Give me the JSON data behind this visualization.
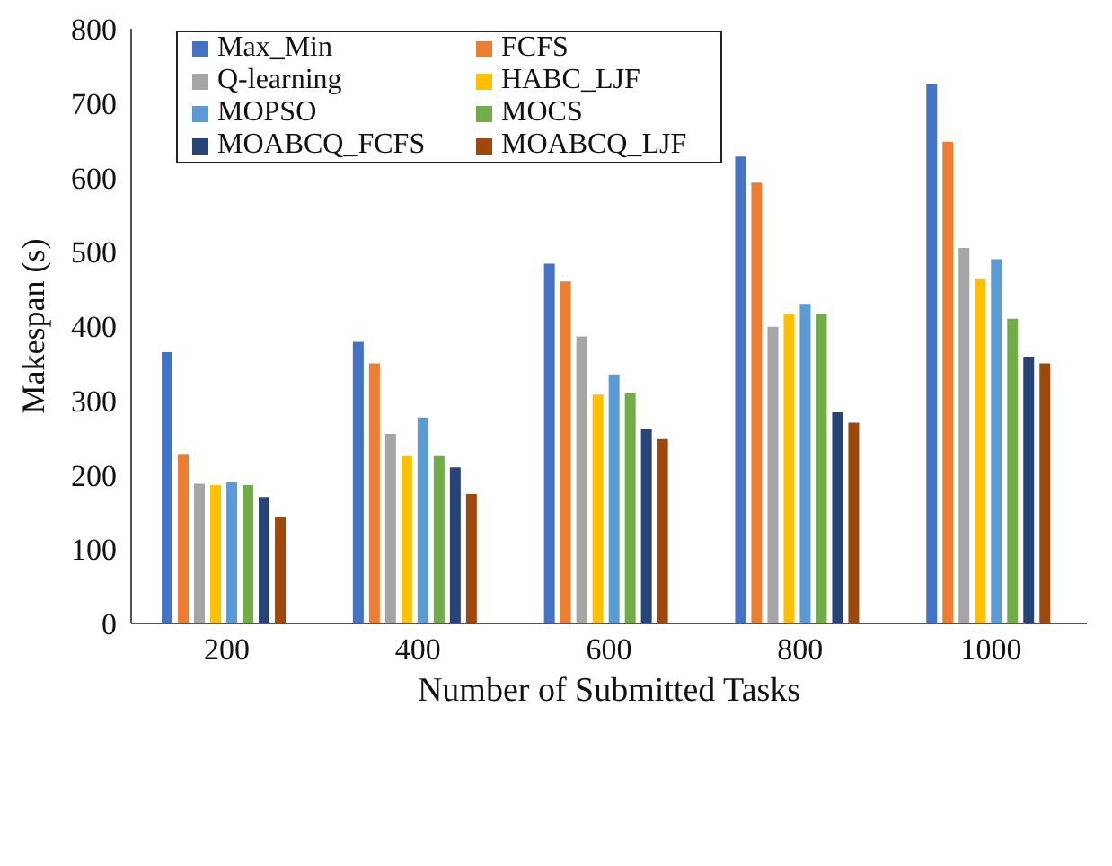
{
  "chart_data": {
    "type": "bar",
    "xlabel": "Number of Submitted Tasks",
    "ylabel": "Makespan (s)",
    "categories": [
      "200",
      "400",
      "600",
      "800",
      "1000"
    ],
    "ylim": [
      0,
      800
    ],
    "yticks": [
      0,
      100,
      200,
      300,
      400,
      500,
      600,
      700,
      800
    ],
    "grid": false,
    "legend": "top left",
    "series": [
      {
        "name": "Max_Min",
        "color": "#4472c4",
        "values": [
          365,
          379,
          484,
          628,
          725
        ]
      },
      {
        "name": "FCFS",
        "color": "#ed7d31",
        "values": [
          228,
          350,
          460,
          593,
          648
        ]
      },
      {
        "name": "Q-learning",
        "color": "#a5a5a5",
        "values": [
          188,
          255,
          386,
          399,
          505
        ]
      },
      {
        "name": "HABC_LJF",
        "color": "#ffc000",
        "values": [
          186,
          225,
          308,
          416,
          463
        ]
      },
      {
        "name": "MOPSO",
        "color": "#5b9bd5",
        "values": [
          190,
          277,
          335,
          430,
          490
        ]
      },
      {
        "name": "MOCS",
        "color": "#70ad47",
        "values": [
          186,
          225,
          310,
          416,
          410
        ]
      },
      {
        "name": "MOABCQ_FCFS",
        "color": "#264478",
        "values": [
          170,
          210,
          261,
          284,
          359
        ]
      },
      {
        "name": "MOABCQ_LJF",
        "color": "#9e480e",
        "values": [
          143,
          174,
          248,
          270,
          350
        ]
      }
    ]
  }
}
